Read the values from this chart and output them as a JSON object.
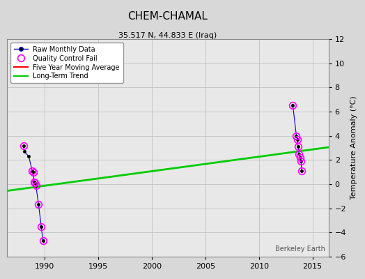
{
  "title": "CHEM-CHAMAL",
  "subtitle": "35.517 N, 44.833 E (Iraq)",
  "ylabel": "Temperature Anomaly (°C)",
  "watermark": "Berkeley Earth",
  "xlim": [
    1986.5,
    2016.5
  ],
  "ylim": [
    -6,
    12
  ],
  "yticks": [
    -6,
    -4,
    -2,
    0,
    2,
    4,
    6,
    8,
    10,
    12
  ],
  "xticks": [
    1990,
    1995,
    2000,
    2005,
    2010,
    2015
  ],
  "bg_color": "#d8d8d8",
  "plot_bg_color": "#e8e8e8",
  "raw_data_1988_x": [
    1988.0,
    1988.08,
    1988.5,
    1988.83,
    1988.92,
    1989.0,
    1989.08,
    1989.17,
    1989.42,
    1989.67,
    1989.83
  ],
  "raw_data_1988_y": [
    3.2,
    2.7,
    2.3,
    1.1,
    1.0,
    0.2,
    0.1,
    -0.1,
    -1.7,
    -3.5,
    -4.7
  ],
  "qc_fail_1988_x": [
    1988.0,
    1988.83,
    1988.92,
    1989.0,
    1989.08,
    1989.17,
    1989.42,
    1989.67,
    1989.83
  ],
  "qc_fail_1988_y": [
    3.2,
    1.1,
    1.0,
    0.2,
    0.1,
    -0.1,
    -1.7,
    -3.5,
    -4.7
  ],
  "raw_data_2013_x": [
    2013.17,
    2013.5,
    2013.58,
    2013.67,
    2013.75,
    2013.83,
    2013.92,
    2014.0
  ],
  "raw_data_2013_y": [
    6.5,
    4.0,
    3.7,
    3.1,
    2.5,
    2.2,
    1.9,
    1.1
  ],
  "qc_fail_2013_x": [
    2013.17,
    2013.5,
    2013.58,
    2013.67,
    2013.75,
    2013.83,
    2013.92,
    2014.0
  ],
  "qc_fail_2013_y": [
    6.5,
    4.0,
    3.7,
    3.1,
    2.5,
    2.2,
    1.9,
    1.1
  ],
  "trend_x": [
    1986.5,
    2016.5
  ],
  "trend_y": [
    -0.55,
    3.05
  ],
  "raw_color": "#0000cc",
  "raw_marker_color": "#000000",
  "qc_color": "#ff00ff",
  "trend_color": "#00cc00",
  "mavg_color": "#ff0000",
  "grid_color": "#bbbbbb",
  "title_fontsize": 11,
  "subtitle_fontsize": 8,
  "tick_fontsize": 8,
  "ylabel_fontsize": 8
}
